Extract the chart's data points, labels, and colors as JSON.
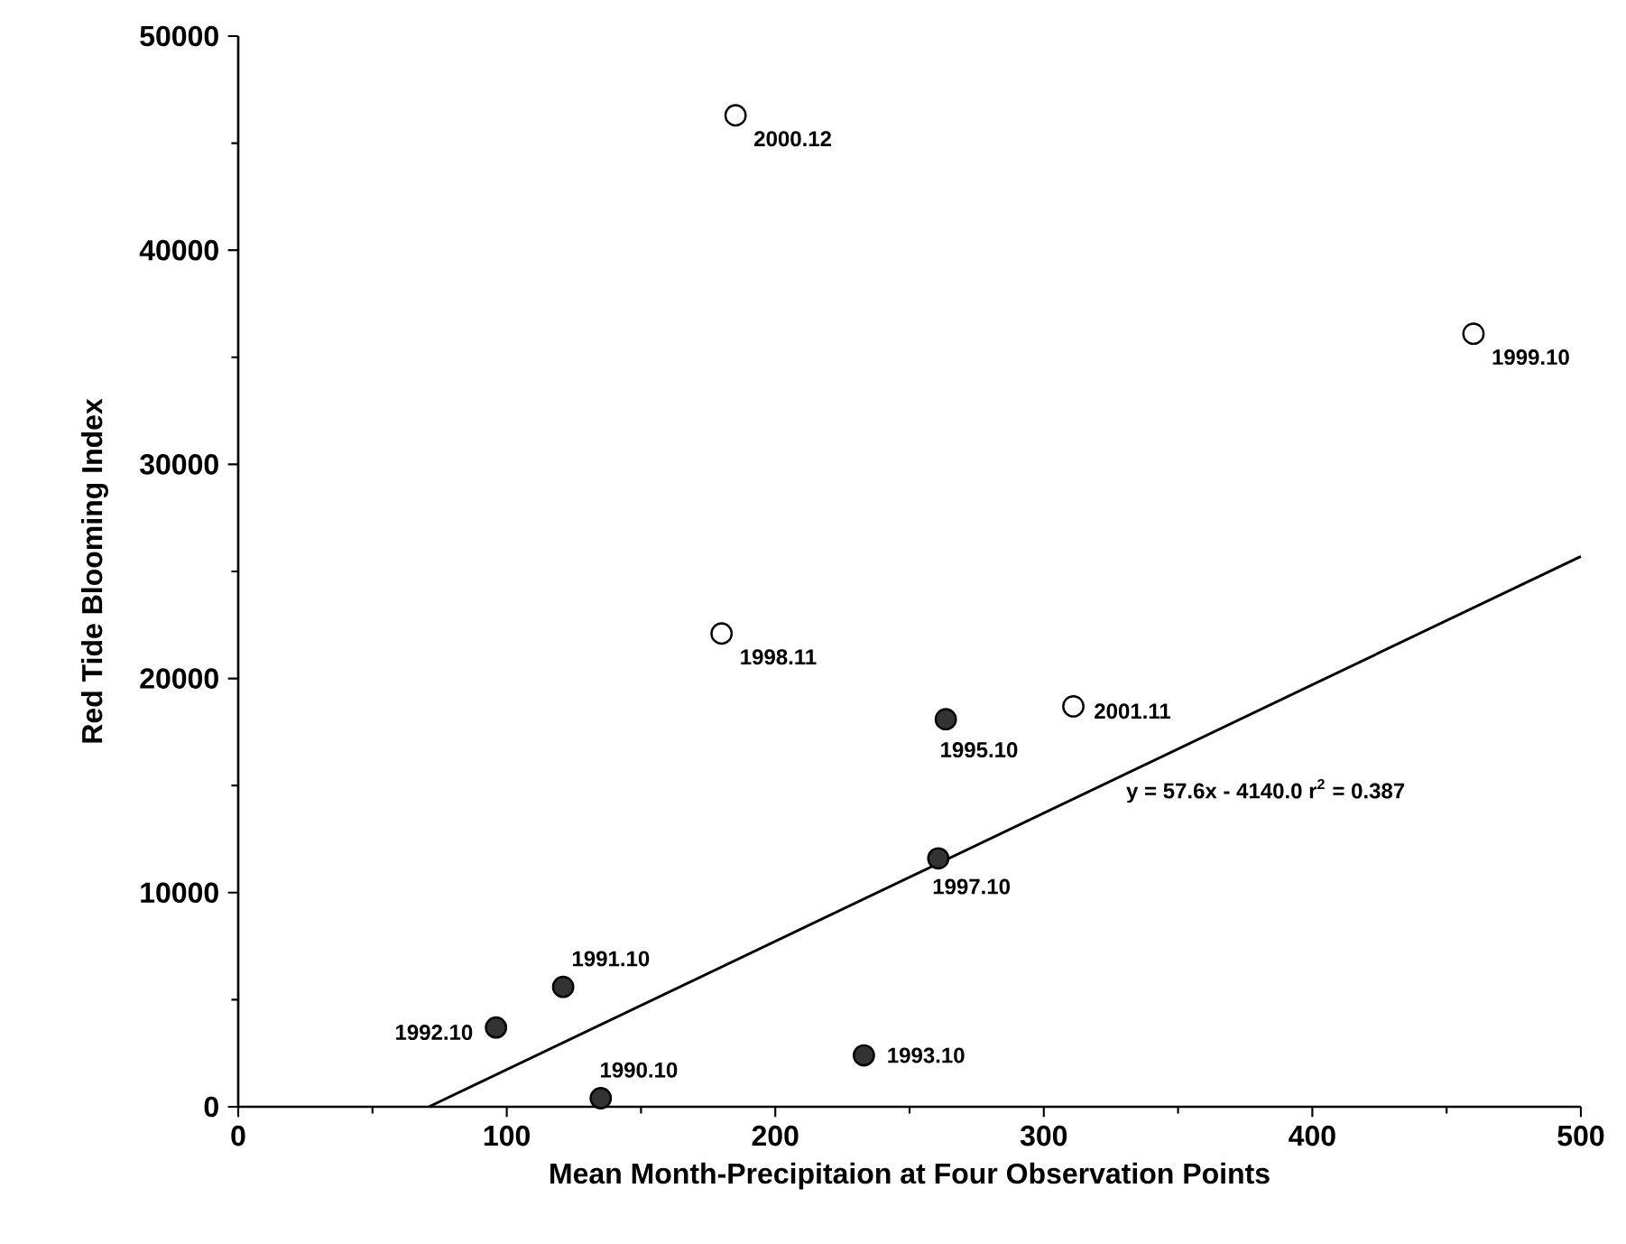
{
  "chart_data": {
    "type": "scatter",
    "xlabel": "Mean Month-Precipitaion at Four Observation Points",
    "ylabel": "Red Tide Blooming Index",
    "xlim": [
      0,
      500
    ],
    "ylim": [
      0,
      50000
    ],
    "xticks": [
      0,
      100,
      200,
      300,
      400,
      500
    ],
    "yticks": [
      0,
      10000,
      20000,
      30000,
      40000,
      50000
    ],
    "grid": false,
    "marker": "circle",
    "series": [
      {
        "color": "#333333",
        "x": [
          96,
          121,
          135,
          233,
          260.7,
          263.5
        ],
        "values": [
          3700,
          5600,
          400,
          2400,
          11600,
          18100
        ]
      },
      {
        "color": "#ffffff",
        "x": [
          185.2,
          460,
          180,
          311
        ],
        "values": [
          46300,
          36100,
          22100,
          18700
        ]
      },
      {
        "type": "line",
        "color": "#000000",
        "marker": "none",
        "line_style": "solid",
        "x": [
          71,
          500
        ],
        "values": [
          0,
          25700
        ]
      }
    ],
    "annotations": [
      {
        "text": "1992.10",
        "x": 96,
        "y": 3700
      },
      {
        "text": "1991.10",
        "x": 121,
        "y": 5600
      },
      {
        "text": "1990.10",
        "x": 135,
        "y": 400
      },
      {
        "text": "1993.10",
        "x": 233,
        "y": 2400
      },
      {
        "text": "1997.10",
        "x": 260.7,
        "y": 11600
      },
      {
        "text": "1995.10",
        "x": 263.5,
        "y": 18100
      },
      {
        "text": "2000.12",
        "x": 185.2,
        "y": 46300
      },
      {
        "text": "1999.10",
        "x": 460,
        "y": 36100
      },
      {
        "text": "1998.11",
        "x": 180,
        "y": 22100
      },
      {
        "text": "2001.11",
        "x": 311,
        "y": 18700
      },
      "y =  57.6x - 4140.0  r$^{2}$ = 0.387"
    ]
  }
}
